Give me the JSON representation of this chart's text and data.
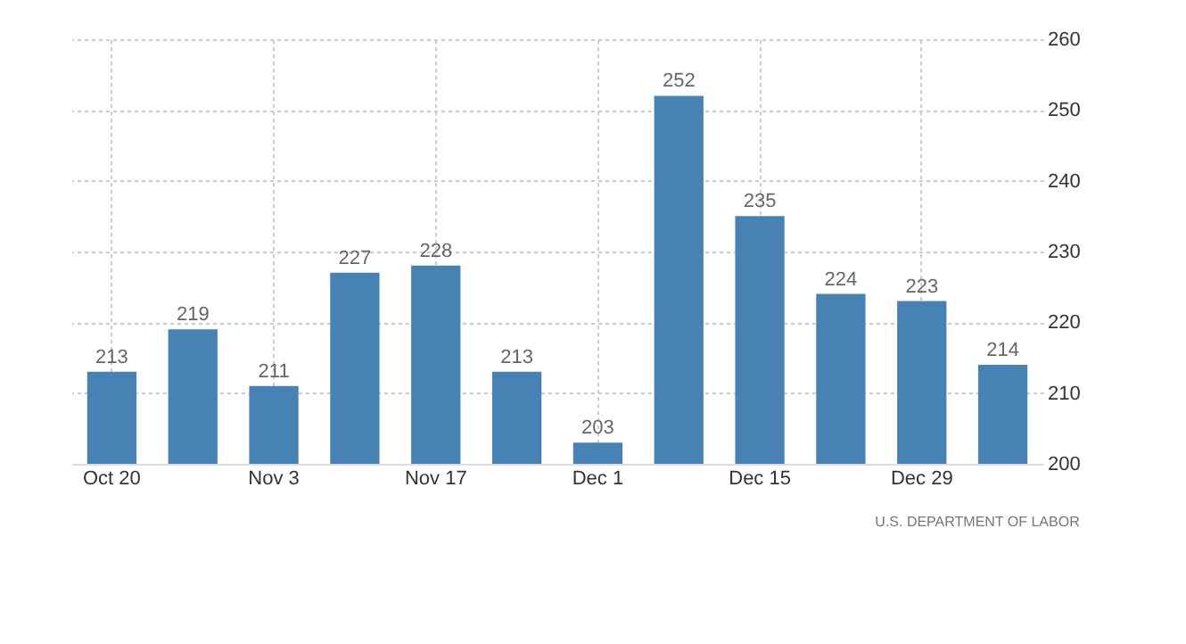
{
  "chart_data": {
    "type": "bar",
    "categories": [
      "Oct 20",
      null,
      "Nov 3",
      null,
      "Nov 17",
      null,
      "Dec 1",
      null,
      "Dec 15",
      null,
      "Dec 29",
      null
    ],
    "values": [
      213,
      219,
      211,
      227,
      228,
      213,
      203,
      252,
      235,
      224,
      223,
      214
    ],
    "color": "#4682b4",
    "ylim": [
      200,
      260
    ],
    "yticks": [
      200,
      210,
      220,
      230,
      240,
      250,
      260
    ],
    "grid": true,
    "data_labels": true,
    "annotations": [
      "U.S. DEPARTMENT OF LABOR"
    ]
  }
}
